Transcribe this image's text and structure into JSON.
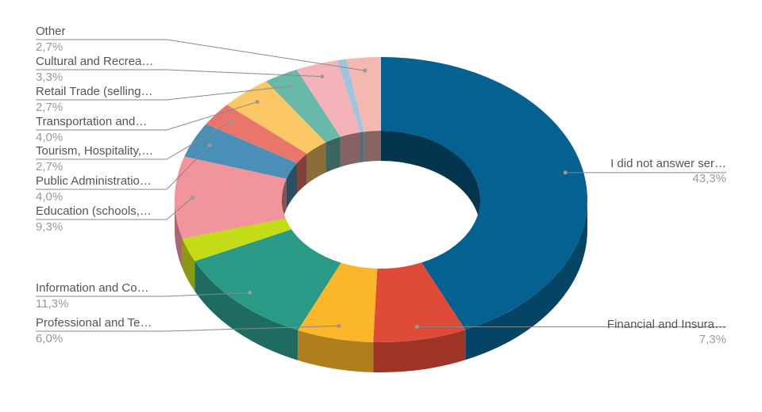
{
  "chart_data": {
    "type": "pie",
    "donut": true,
    "three_d": true,
    "categories": [
      "I did not answer ser…",
      "Financial and Insura…",
      "Professional and Te…",
      "Information and Co…",
      null,
      "Education (schools,…",
      "Public Administratio…",
      "Tourism, Hospitality,…",
      "Transportation and…",
      "Retail Trade (selling…",
      "Cultural and Recrea…",
      null,
      "Other"
    ],
    "values": [
      43.3,
      7.3,
      6.0,
      11.3,
      2.7,
      9.3,
      4.0,
      2.7,
      4.0,
      2.7,
      3.3,
      0.7,
      2.7
    ],
    "value_labels": [
      "43,3%",
      "7,3%",
      "6,0%",
      "11,3%",
      null,
      "9,3%",
      "4,0%",
      "2,7%",
      "4,0%",
      "2,7%",
      "3,3%",
      null,
      "2,7%"
    ],
    "colors": [
      "#05618f",
      "#e04a38",
      "#fbb62a",
      "#2a9a87",
      "#c4dc18",
      "#f1949b",
      "#4a8fb8",
      "#e8766a",
      "#fcc765",
      "#69b9ab",
      "#f4b3b9",
      "#9fc4dc",
      "#f5b8b0"
    ]
  }
}
